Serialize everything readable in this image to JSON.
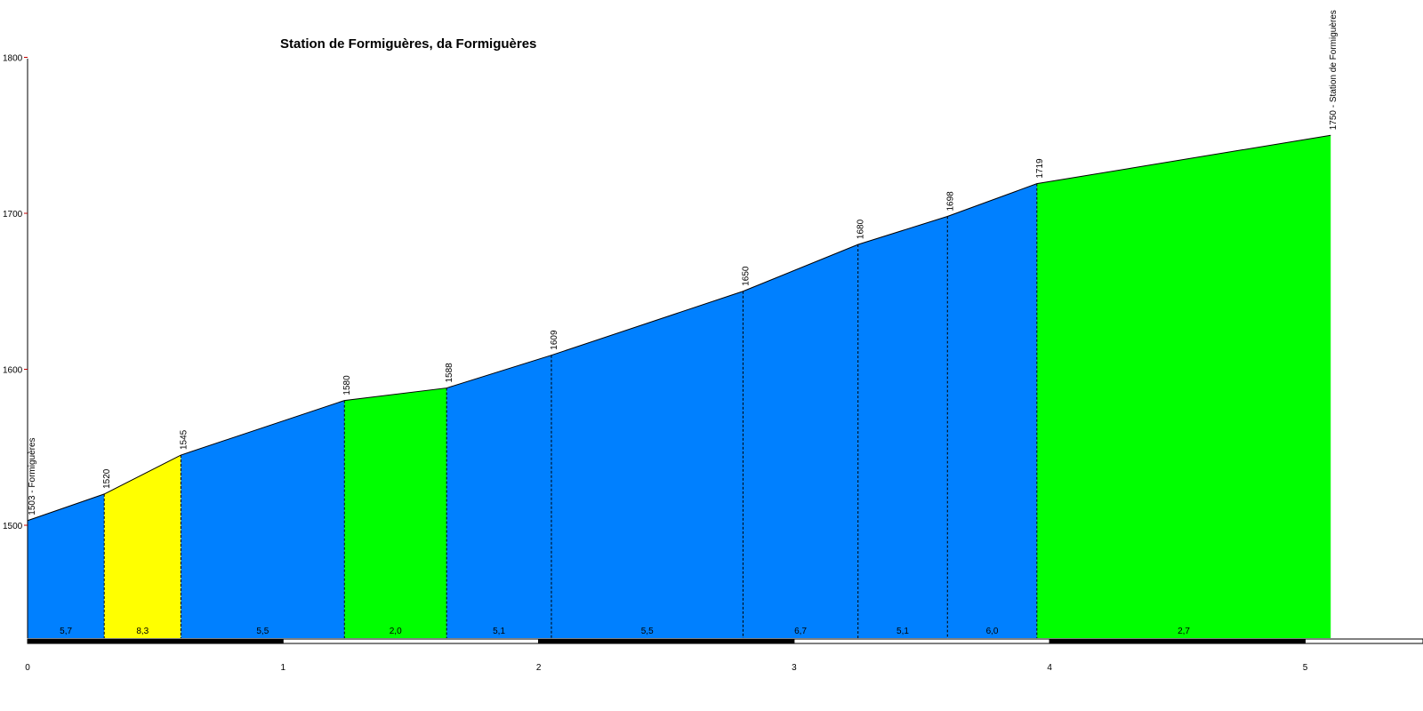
{
  "chart_data": {
    "type": "area",
    "title": "Station de Formiguères, da Formiguères",
    "xlabel": "",
    "ylabel": "",
    "xlim": [
      0,
      5.45
    ],
    "ylim": [
      1428,
      1800
    ],
    "x_ticks": [
      "0",
      "1",
      "2",
      "3",
      "4",
      "5"
    ],
    "y_ticks": [
      "1500",
      "1600",
      "1700",
      "1800"
    ],
    "points": [
      {
        "x": 0.0,
        "y": 1503,
        "label": "1503 - Formiguères"
      },
      {
        "x": 0.3,
        "y": 1520,
        "label": "1520"
      },
      {
        "x": 0.6,
        "y": 1545,
        "label": "1545"
      },
      {
        "x": 1.24,
        "y": 1580,
        "label": "1580"
      },
      {
        "x": 1.64,
        "y": 1588,
        "label": "1588"
      },
      {
        "x": 2.05,
        "y": 1609,
        "label": "1609"
      },
      {
        "x": 2.8,
        "y": 1650,
        "label": "1650"
      },
      {
        "x": 3.25,
        "y": 1680,
        "label": "1680"
      },
      {
        "x": 3.6,
        "y": 1698,
        "label": "1698"
      },
      {
        "x": 3.95,
        "y": 1719,
        "label": "1719"
      },
      {
        "x": 5.1,
        "y": 1750,
        "label": "1750 - Station de Formiguères"
      }
    ],
    "segments": [
      {
        "from": 0.0,
        "to": 0.3,
        "gradient": "5,7",
        "color": "#0080ff"
      },
      {
        "from": 0.3,
        "to": 0.6,
        "gradient": "8,3",
        "color": "#ffff00"
      },
      {
        "from": 0.6,
        "to": 1.24,
        "gradient": "5,5",
        "color": "#0080ff"
      },
      {
        "from": 1.24,
        "to": 1.64,
        "gradient": "2,0",
        "color": "#00ff00"
      },
      {
        "from": 1.64,
        "to": 2.05,
        "gradient": "5,1",
        "color": "#0080ff"
      },
      {
        "from": 2.05,
        "to": 2.8,
        "gradient": "5,5",
        "color": "#0080ff"
      },
      {
        "from": 2.8,
        "to": 3.25,
        "gradient": "6,7",
        "color": "#0080ff"
      },
      {
        "from": 3.25,
        "to": 3.6,
        "gradient": "5,1",
        "color": "#0080ff"
      },
      {
        "from": 3.6,
        "to": 3.95,
        "gradient": "6,0",
        "color": "#0080ff"
      },
      {
        "from": 3.95,
        "to": 5.1,
        "gradient": "2,7",
        "color": "#00ff00"
      }
    ],
    "grid": false,
    "legend": "none"
  }
}
